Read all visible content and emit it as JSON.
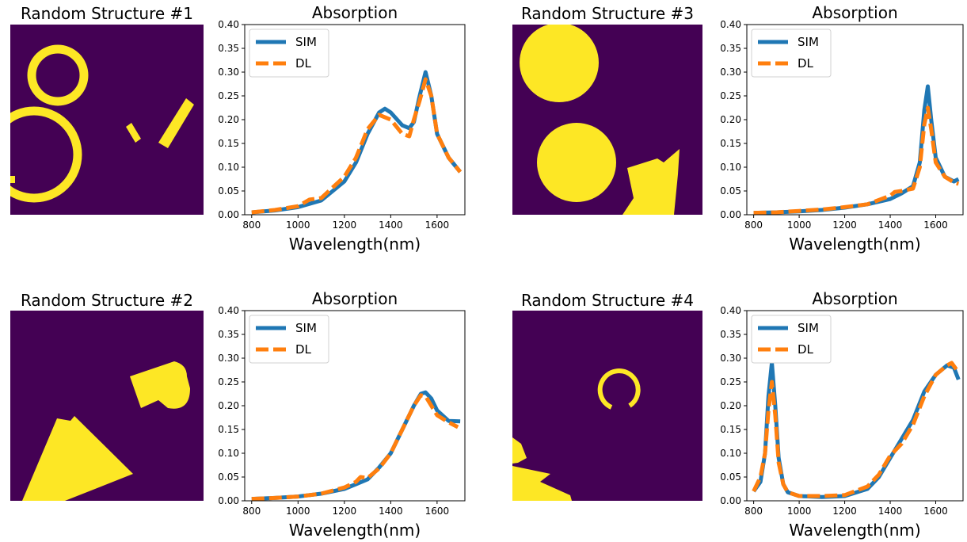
{
  "colors": {
    "background": "#440154",
    "shape": "#fde725",
    "sim": "#1f77b4",
    "dl": "#ff7f0e"
  },
  "structures": [
    {
      "title": "Random Structure #1"
    },
    {
      "title": "Random Structure #2"
    },
    {
      "title": "Random Structure #3"
    },
    {
      "title": "Random Structure #4"
    }
  ],
  "chart_data": [
    {
      "type": "line",
      "title": "Absorption",
      "xlabel": "Wavelength(nm)",
      "ylabel": "",
      "xlim": [
        770,
        1720
      ],
      "ylim": [
        0,
        0.4
      ],
      "xticks": [
        "800",
        "1000",
        "1200",
        "1400",
        "1600"
      ],
      "yticks": [
        "0.00",
        "0.05",
        "0.10",
        "0.15",
        "0.20",
        "0.25",
        "0.30",
        "0.35",
        "0.40"
      ],
      "legend": "top-left",
      "series": [
        {
          "name": "SIM",
          "x": [
            800,
            900,
            1000,
            1100,
            1200,
            1250,
            1300,
            1350,
            1375,
            1400,
            1450,
            1480,
            1500,
            1525,
            1550,
            1575,
            1600,
            1650,
            1700
          ],
          "values": [
            0.005,
            0.009,
            0.016,
            0.03,
            0.07,
            0.11,
            0.17,
            0.215,
            0.223,
            0.215,
            0.188,
            0.182,
            0.195,
            0.25,
            0.3,
            0.25,
            0.17,
            0.12,
            0.09
          ]
        },
        {
          "name": "DL",
          "x": [
            800,
            900,
            1000,
            1050,
            1100,
            1200,
            1250,
            1300,
            1350,
            1400,
            1450,
            1480,
            1500,
            1525,
            1550,
            1575,
            1600,
            1650,
            1700
          ],
          "values": [
            0.005,
            0.01,
            0.018,
            0.032,
            0.035,
            0.08,
            0.12,
            0.18,
            0.21,
            0.2,
            0.17,
            0.165,
            0.2,
            0.24,
            0.285,
            0.25,
            0.17,
            0.12,
            0.09
          ]
        }
      ]
    },
    {
      "type": "line",
      "title": "Absorption",
      "xlabel": "Wavelength(nm)",
      "ylabel": "",
      "xlim": [
        770,
        1720
      ],
      "ylim": [
        0,
        0.4
      ],
      "xticks": [
        "800",
        "1000",
        "1200",
        "1400",
        "1600"
      ],
      "yticks": [
        "0.00",
        "0.05",
        "0.10",
        "0.15",
        "0.20",
        "0.25",
        "0.30",
        "0.35",
        "0.40"
      ],
      "legend": "top-left",
      "series": [
        {
          "name": "SIM",
          "x": [
            800,
            900,
            1000,
            1100,
            1200,
            1250,
            1300,
            1350,
            1400,
            1450,
            1500,
            1530,
            1550,
            1575,
            1600,
            1650,
            1700
          ],
          "values": [
            0.004,
            0.006,
            0.009,
            0.015,
            0.025,
            0.035,
            0.045,
            0.07,
            0.1,
            0.15,
            0.2,
            0.225,
            0.228,
            0.215,
            0.19,
            0.168,
            0.167
          ]
        },
        {
          "name": "DL",
          "x": [
            800,
            900,
            1000,
            1100,
            1200,
            1250,
            1270,
            1300,
            1350,
            1400,
            1450,
            1500,
            1530,
            1550,
            1575,
            1600,
            1650,
            1690
          ],
          "values": [
            0.004,
            0.006,
            0.009,
            0.015,
            0.028,
            0.04,
            0.05,
            0.048,
            0.068,
            0.1,
            0.15,
            0.2,
            0.222,
            0.22,
            0.2,
            0.18,
            0.165,
            0.155
          ]
        }
      ]
    },
    {
      "type": "line",
      "title": "Absorption",
      "xlabel": "Wavelength(nm)",
      "ylabel": "",
      "xlim": [
        770,
        1720
      ],
      "ylim": [
        0,
        0.4
      ],
      "xticks": [
        "800",
        "1000",
        "1200",
        "1400",
        "1600"
      ],
      "yticks": [
        "0.00",
        "0.05",
        "0.10",
        "0.15",
        "0.20",
        "0.25",
        "0.30",
        "0.35",
        "0.40"
      ],
      "legend": "top-left",
      "series": [
        {
          "name": "SIM",
          "x": [
            800,
            900,
            1000,
            1100,
            1200,
            1300,
            1400,
            1450,
            1500,
            1530,
            1550,
            1565,
            1580,
            1600,
            1640,
            1680,
            1700
          ],
          "values": [
            0.004,
            0.005,
            0.007,
            0.01,
            0.015,
            0.022,
            0.033,
            0.045,
            0.06,
            0.11,
            0.22,
            0.27,
            0.2,
            0.12,
            0.08,
            0.07,
            0.075
          ]
        },
        {
          "name": "DL",
          "x": [
            800,
            900,
            1000,
            1100,
            1200,
            1300,
            1400,
            1420,
            1450,
            1500,
            1530,
            1550,
            1565,
            1580,
            1600,
            1640,
            1680,
            1700
          ],
          "values": [
            0.004,
            0.005,
            0.008,
            0.011,
            0.016,
            0.022,
            0.04,
            0.048,
            0.05,
            0.055,
            0.1,
            0.19,
            0.225,
            0.18,
            0.11,
            0.08,
            0.068,
            0.065
          ]
        }
      ]
    },
    {
      "type": "line",
      "title": "Absorption",
      "xlabel": "Wavelength(nm)",
      "ylabel": "",
      "xlim": [
        770,
        1720
      ],
      "ylim": [
        0,
        0.4
      ],
      "xticks": [
        "800",
        "1000",
        "1200",
        "1400",
        "1600"
      ],
      "yticks": [
        "0.00",
        "0.05",
        "0.10",
        "0.15",
        "0.20",
        "0.25",
        "0.30",
        "0.35",
        "0.40"
      ],
      "legend": "top-left",
      "series": [
        {
          "name": "SIM",
          "x": [
            800,
            830,
            850,
            865,
            880,
            895,
            910,
            930,
            950,
            1000,
            1100,
            1200,
            1300,
            1350,
            1400,
            1450,
            1500,
            1550,
            1600,
            1650,
            1680,
            1700
          ],
          "values": [
            0.02,
            0.04,
            0.1,
            0.22,
            0.29,
            0.2,
            0.09,
            0.035,
            0.018,
            0.01,
            0.008,
            0.01,
            0.025,
            0.05,
            0.09,
            0.13,
            0.17,
            0.23,
            0.265,
            0.285,
            0.28,
            0.255
          ]
        },
        {
          "name": "DL",
          "x": [
            800,
            830,
            850,
            865,
            880,
            895,
            910,
            930,
            950,
            1000,
            1100,
            1200,
            1300,
            1350,
            1400,
            1450,
            1500,
            1550,
            1600,
            1650,
            1670,
            1700
          ],
          "values": [
            0.02,
            0.05,
            0.1,
            0.19,
            0.25,
            0.18,
            0.08,
            0.035,
            0.018,
            0.01,
            0.01,
            0.012,
            0.03,
            0.055,
            0.095,
            0.12,
            0.16,
            0.22,
            0.265,
            0.285,
            0.29,
            0.27
          ]
        }
      ]
    }
  ]
}
